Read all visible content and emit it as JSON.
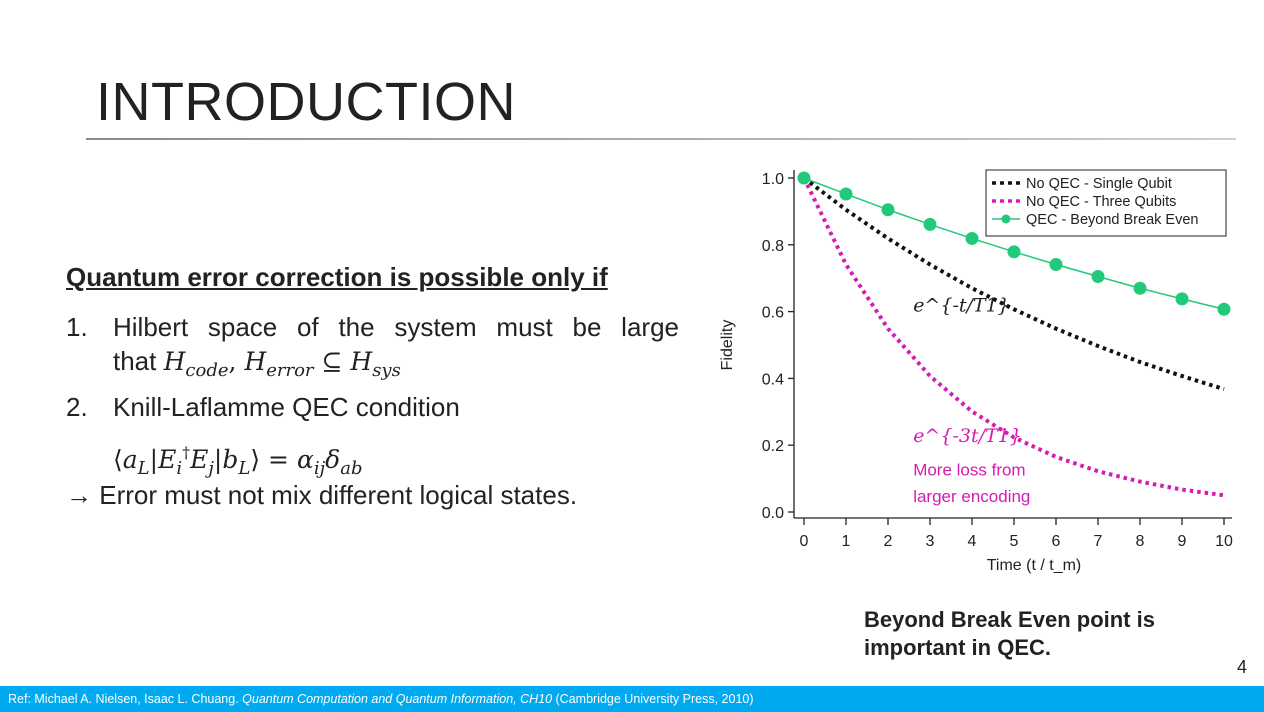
{
  "slide": {
    "title": "INTRODUCTION",
    "heading": "Quantum error correction is possible only if",
    "item1_num": "1.",
    "item1_text": "Hilbert space of the system must be large",
    "item1_that": "that",
    "item1_formula": "H_code, H_error ⊆ H_sys",
    "item2_num": "2.",
    "item2_text": "Knill-Laflamme QEC condition",
    "item2_formula": "⟨a_L|E_i^† E_j|b_L⟩ = α_ij δ_ab",
    "arrow_text": "→ Error must not mix different logical states.",
    "caption_line1": "Beyond Break Even point is",
    "caption_line2": "important in QEC.",
    "page_number": "4"
  },
  "footer": {
    "prefix": "Ref:  Michael A. Nielsen, Isaac L. Chuang. ",
    "book": "Quantum Computation and Quantum Information, CH10",
    "suffix": " (Cambridge University Press, 2010)"
  },
  "chart_data": {
    "type": "line",
    "ylabel": "Fidelity",
    "xlabel": "Time (t / t_m)",
    "xlim": [
      0,
      10
    ],
    "ylim": [
      0,
      1.0
    ],
    "x_ticks": [
      "0",
      "1",
      "2",
      "3",
      "4",
      "5",
      "6",
      "7",
      "8",
      "9",
      "10"
    ],
    "y_ticks": [
      "0.0",
      "0.2",
      "0.4",
      "0.6",
      "0.8",
      "1.0"
    ],
    "legend_position": "top-right",
    "series": [
      {
        "name": "No QEC - Single Qubit",
        "color": "#111111",
        "style": "dotted",
        "x": [
          0,
          1,
          2,
          3,
          4,
          5,
          6,
          7,
          8,
          9,
          10
        ],
        "y": [
          1.0,
          0.905,
          0.819,
          0.741,
          0.67,
          0.607,
          0.549,
          0.497,
          0.449,
          0.407,
          0.368
        ]
      },
      {
        "name": "No QEC - Three Qubits",
        "color": "#d61ab4",
        "style": "dotted",
        "x": [
          0,
          1,
          2,
          3,
          4,
          5,
          6,
          7,
          8,
          9,
          10
        ],
        "y": [
          1.0,
          0.741,
          0.549,
          0.407,
          0.301,
          0.223,
          0.165,
          0.122,
          0.091,
          0.067,
          0.05
        ]
      },
      {
        "name": "QEC - Beyond Break Even",
        "color": "#22c97a",
        "style": "solid-markers",
        "x": [
          0,
          1,
          2,
          3,
          4,
          5,
          6,
          7,
          8,
          9,
          10
        ],
        "y": [
          1.0,
          0.952,
          0.905,
          0.861,
          0.819,
          0.779,
          0.741,
          0.705,
          0.67,
          0.638,
          0.607
        ]
      }
    ],
    "annotations": [
      {
        "text": "e^{-t/T1}",
        "x": 2.6,
        "y": 0.6,
        "color": "#222222"
      },
      {
        "text": "e^{-3t/T1}",
        "x": 2.6,
        "y": 0.21,
        "color": "#d61ab4"
      },
      {
        "text": "More loss from",
        "x": 2.6,
        "y": 0.11,
        "color": "#d61ab4"
      },
      {
        "text": "larger encoding",
        "x": 2.6,
        "y": 0.03,
        "color": "#d61ab4"
      }
    ]
  }
}
